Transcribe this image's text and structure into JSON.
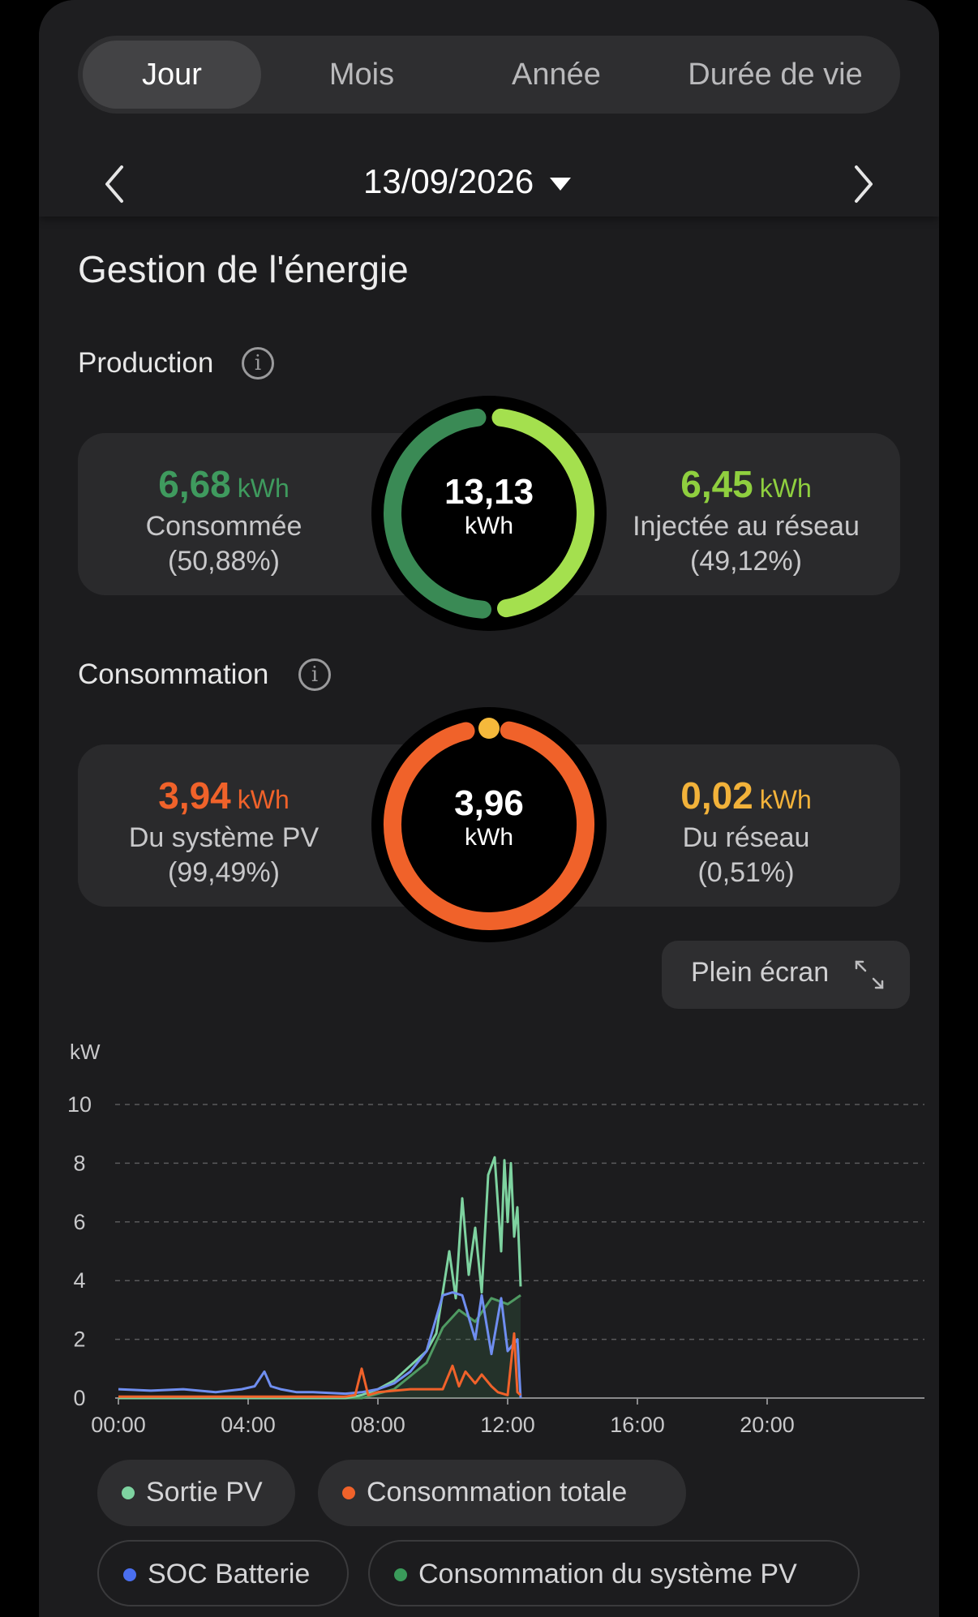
{
  "tabs": [
    {
      "label": "Jour",
      "active": true
    },
    {
      "label": "Mois",
      "active": false
    },
    {
      "label": "Année",
      "active": false
    },
    {
      "label": "Durée de vie",
      "active": false
    }
  ],
  "date": {
    "value": "13/09/2026",
    "prev_icon": "chevron-left-icon",
    "next_icon": "chevron-right-icon",
    "dropdown_icon": "caret-down-icon"
  },
  "energy": {
    "title": "Gestion de l'énergie",
    "production": {
      "label": "Production",
      "total_value": "13,13",
      "total_unit": "kWh",
      "consumed": {
        "value": "6,68",
        "unit": "kWh",
        "label": "Consommée",
        "pct": "(50,88%)",
        "color": "#3a8a55",
        "fraction": 0.5088
      },
      "injected": {
        "value": "6,45",
        "unit": "kWh",
        "label": "Injectée au réseau",
        "pct": "(49,12%)",
        "color": "#a4e04e",
        "fraction": 0.4912
      }
    },
    "consumption": {
      "label": "Consommation",
      "total_value": "3,96",
      "total_unit": "kWh",
      "pv": {
        "value": "3,94",
        "unit": "kWh",
        "label": "Du système PV",
        "pct": "(99,49%)",
        "color": "#f0622a",
        "fraction": 0.9949
      },
      "grid": {
        "value": "0,02",
        "unit": "kWh",
        "label": "Du réseau",
        "pct": "(0,51%)",
        "color": "#f5b93b",
        "fraction": 0.0051
      }
    }
  },
  "fullscreen": {
    "label": "Plein écran",
    "icon": "expand-icon"
  },
  "chart_data": {
    "type": "line",
    "ylabel": "kW",
    "ylim": [
      0,
      10
    ],
    "yticks": [
      "0",
      "2",
      "4",
      "6",
      "8",
      "10"
    ],
    "xticks": [
      "00:00",
      "04:00",
      "08:00",
      "12:00",
      "16:00",
      "20:00"
    ],
    "x_range_hours": [
      0,
      24
    ],
    "grid": true,
    "series": [
      {
        "name": "Consommation du système PV",
        "color": "#4f9a62",
        "x": [
          0,
          7.5,
          8.5,
          9.5,
          10,
          10.5,
          11,
          11.5,
          12,
          12.4
        ],
        "y": [
          0,
          0,
          0.3,
          1.2,
          2.4,
          3.0,
          2.6,
          3.4,
          3.2,
          3.5
        ]
      },
      {
        "name": "Sortie PV",
        "color": "#7ed3a0",
        "x": [
          0,
          7.0,
          7.5,
          8.0,
          8.5,
          9.0,
          9.5,
          9.8,
          10.0,
          10.2,
          10.4,
          10.6,
          10.8,
          11.0,
          11.2,
          11.4,
          11.6,
          11.8,
          11.9,
          12.0,
          12.1,
          12.2,
          12.3,
          12.4
        ],
        "y": [
          0,
          0,
          0.1,
          0.3,
          0.6,
          1.1,
          1.6,
          2.2,
          3.6,
          5.0,
          3.4,
          6.8,
          4.2,
          5.8,
          3.6,
          7.6,
          8.2,
          5.0,
          8.1,
          6.0,
          8.0,
          5.5,
          6.5,
          3.8
        ]
      },
      {
        "name": "SOC Batterie",
        "color": "#6f8ef0",
        "x": [
          0,
          1,
          2,
          3,
          3.8,
          4.2,
          4.5,
          4.7,
          5.0,
          5.5,
          6,
          7,
          7.5,
          8,
          8.5,
          9,
          9.5,
          10.0,
          10.3,
          10.6,
          11.0,
          11.2,
          11.5,
          11.8,
          12.0,
          12.3,
          12.4
        ],
        "y": [
          0.3,
          0.25,
          0.3,
          0.2,
          0.3,
          0.4,
          0.9,
          0.4,
          0.3,
          0.2,
          0.2,
          0.15,
          0.2,
          0.3,
          0.5,
          0.9,
          1.6,
          3.5,
          3.6,
          3.5,
          2.0,
          3.5,
          1.5,
          3.4,
          1.6,
          2.0,
          0
        ]
      },
      {
        "name": "Consommation totale",
        "color": "#f0622a",
        "x": [
          0,
          7.0,
          7.3,
          7.5,
          7.7,
          8.0,
          9.0,
          10.0,
          10.3,
          10.5,
          10.7,
          11.0,
          11.2,
          11.5,
          11.7,
          12.0,
          12.2,
          12.3,
          12.4
        ],
        "y": [
          0.05,
          0.05,
          0.1,
          1.0,
          0.1,
          0.2,
          0.3,
          0.3,
          1.1,
          0.4,
          0.9,
          0.5,
          0.8,
          0.4,
          0.2,
          0.1,
          2.2,
          0.2,
          0.1
        ]
      }
    ]
  },
  "legend": [
    {
      "label": "Sortie PV",
      "color": "#7ed3a0",
      "style": "filled"
    },
    {
      "label": "Consommation totale",
      "color": "#f0622a",
      "style": "filled"
    },
    {
      "label": "SOC Batterie",
      "color": "#4a6ff0",
      "style": "outlined"
    },
    {
      "label": "Consommation du système PV",
      "color": "#3a9a5a",
      "style": "outlined"
    }
  ]
}
